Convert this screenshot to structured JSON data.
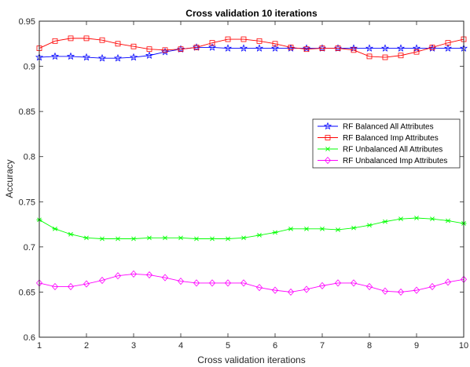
{
  "chart_data": {
    "type": "line",
    "title": "Cross validation 10 iterations",
    "xlabel": "Cross validation iterations",
    "ylabel": "Accuracy",
    "xlim": [
      1,
      10
    ],
    "ylim": [
      0.6,
      0.95
    ],
    "xticks": [
      1,
      2,
      3,
      4,
      5,
      6,
      7,
      8,
      9,
      10
    ],
    "yticks": [
      0.6,
      0.65,
      0.7,
      0.75,
      0.8,
      0.85,
      0.9,
      0.95
    ],
    "ytick_labels": [
      "0.6",
      "0.65",
      "0.7",
      "0.75",
      "0.8",
      "0.85",
      "0.9",
      "0.95"
    ],
    "grid": false,
    "legend_position": "right",
    "x": [
      1,
      1.3333,
      1.6667,
      2,
      2.3333,
      2.6667,
      3,
      3.3333,
      3.6667,
      4,
      4.3333,
      4.6667,
      5,
      5.3333,
      5.6667,
      6,
      6.3333,
      6.6667,
      7,
      7.3333,
      7.6667,
      8,
      8.3333,
      8.6667,
      9,
      9.3333,
      9.6667,
      10
    ],
    "series": [
      {
        "name": "RF Balanced All Attributes",
        "color": "#0000ff",
        "marker": "star",
        "values": [
          0.91,
          0.911,
          0.911,
          0.91,
          0.909,
          0.909,
          0.91,
          0.912,
          0.916,
          0.919,
          0.921,
          0.921,
          0.92,
          0.92,
          0.92,
          0.92,
          0.92,
          0.92,
          0.92,
          0.92,
          0.92,
          0.92,
          0.92,
          0.92,
          0.92,
          0.92,
          0.92,
          0.92
        ]
      },
      {
        "name": "RF Balanced Imp Attributes",
        "color": "#ff0000",
        "marker": "square",
        "values": [
          0.92,
          0.928,
          0.931,
          0.931,
          0.929,
          0.925,
          0.922,
          0.919,
          0.918,
          0.919,
          0.921,
          0.926,
          0.93,
          0.93,
          0.928,
          0.925,
          0.921,
          0.919,
          0.92,
          0.92,
          0.918,
          0.911,
          0.91,
          0.912,
          0.916,
          0.921,
          0.926,
          0.93
        ]
      },
      {
        "name": "RF Unbalanced All Attributes",
        "color": "#00ff00",
        "marker": "asterisk",
        "values": [
          0.73,
          0.72,
          0.714,
          0.71,
          0.709,
          0.709,
          0.709,
          0.71,
          0.71,
          0.71,
          0.709,
          0.709,
          0.709,
          0.71,
          0.713,
          0.716,
          0.72,
          0.72,
          0.72,
          0.719,
          0.721,
          0.724,
          0.728,
          0.731,
          0.732,
          0.731,
          0.729,
          0.726
        ]
      },
      {
        "name": "RF Unbalanced Imp Attributes",
        "color": "#ff00ff",
        "marker": "diamond",
        "values": [
          0.66,
          0.656,
          0.656,
          0.659,
          0.663,
          0.668,
          0.67,
          0.669,
          0.666,
          0.662,
          0.66,
          0.66,
          0.66,
          0.66,
          0.655,
          0.652,
          0.65,
          0.653,
          0.657,
          0.66,
          0.66,
          0.656,
          0.651,
          0.65,
          0.652,
          0.656,
          0.661,
          0.664
        ]
      }
    ]
  }
}
